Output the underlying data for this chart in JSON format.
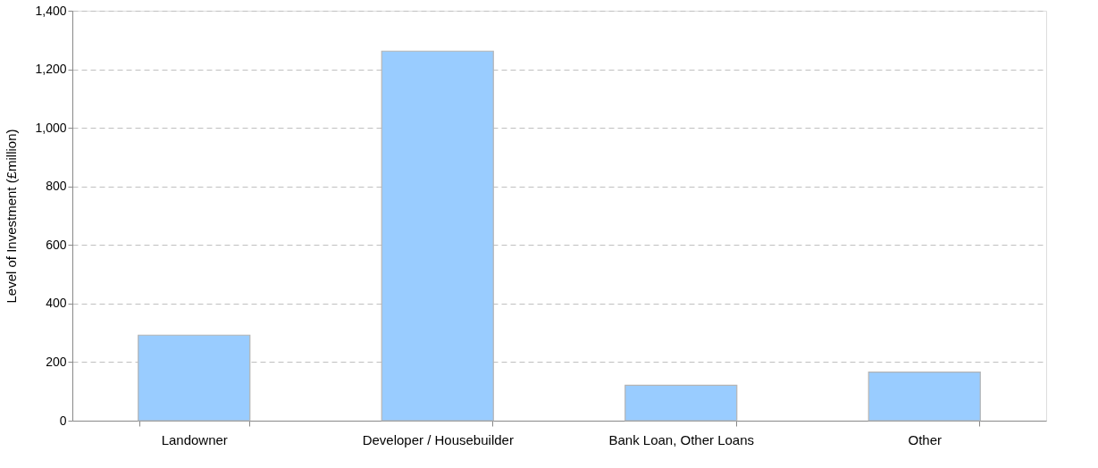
{
  "chart_data": {
    "type": "bar",
    "ylabel": "Level of Investment (£million)",
    "categories": [
      "Landowner",
      "Developer / Housebuilder",
      "Bank Loan, Other Loans",
      "Other"
    ],
    "values": [
      292,
      1262,
      121,
      166
    ],
    "color": "#99ccff",
    "ylim": [
      0,
      1400
    ],
    "yticks": [
      {
        "value": 0,
        "label": "0"
      },
      {
        "value": 200,
        "label": "200"
      },
      {
        "value": 400,
        "label": "400"
      },
      {
        "value": 600,
        "label": "600"
      },
      {
        "value": 800,
        "label": "800"
      },
      {
        "value": 1000,
        "label": "1,000"
      },
      {
        "value": 1200,
        "label": "1,200"
      },
      {
        "value": 1400,
        "label": "1,400"
      }
    ],
    "grid": "y"
  }
}
